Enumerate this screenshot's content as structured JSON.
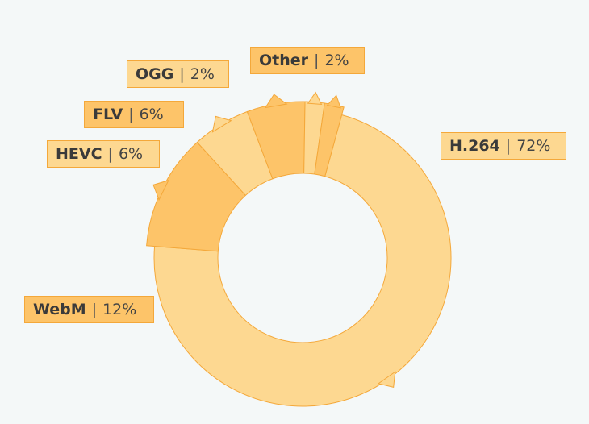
{
  "chart_data": {
    "type": "pie",
    "donut": true,
    "title": "",
    "categories": [
      "H.264",
      "WebM",
      "HEVC",
      "FLV",
      "OGG",
      "Other"
    ],
    "values": [
      72,
      12,
      6,
      6,
      2,
      2
    ],
    "value_labels": [
      "72%",
      "12%",
      "6%",
      "6%",
      "2%",
      "2%"
    ],
    "separator": "|",
    "colors": {
      "H.264": "#fdd891",
      "WebM": "#fdc469",
      "HEVC": "#fdd891",
      "FLV": "#fdc469",
      "OGG": "#fdd891",
      "Other": "#fdc469"
    },
    "stroke_color": "#f4a83a",
    "legend": "none"
  }
}
